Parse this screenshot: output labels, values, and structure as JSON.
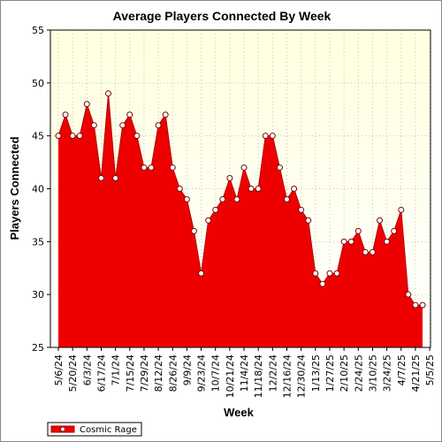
{
  "chart_data": {
    "type": "area",
    "title": "Average Players Connected By Week",
    "xlabel": "Week",
    "ylabel": "Players Connected",
    "ylim": [
      25,
      55
    ],
    "yticks": [
      25,
      30,
      35,
      40,
      45,
      50,
      55
    ],
    "grid": true,
    "legend_position": "bottom-left",
    "colors": {
      "plot_background_top": "#ffffe0",
      "plot_background_bottom": "#ffffff",
      "area_fill": "#ee0000",
      "line": "#b00000",
      "grid": "#c8c8a0",
      "marker_fill": "#ffffff",
      "marker_stroke": "#800000"
    },
    "x_tick_labels": [
      "5/6/24",
      "5/20/24",
      "6/3/24",
      "6/17/24",
      "7/1/24",
      "7/15/24",
      "7/29/24",
      "8/12/24",
      "8/26/24",
      "9/9/24",
      "9/23/24",
      "10/7/24",
      "10/21/24",
      "11/4/24",
      "11/18/24",
      "12/2/24",
      "12/16/24",
      "12/30/24",
      "1/13/25",
      "1/27/25",
      "2/10/25",
      "2/24/25",
      "3/10/25",
      "3/24/25",
      "4/7/25",
      "4/21/25",
      "5/5/25"
    ],
    "series": [
      {
        "name": "Cosmic Rage",
        "values": [
          45,
          47,
          45,
          45,
          48,
          46,
          41,
          49,
          41,
          46,
          47,
          45,
          42,
          42,
          46,
          47,
          42,
          40,
          39,
          36,
          32,
          37,
          38,
          39,
          41,
          39,
          42,
          40,
          40,
          45,
          45,
          42,
          39,
          40,
          38,
          37,
          32,
          31,
          32,
          32,
          35,
          35,
          36,
          34,
          34,
          37,
          35,
          36,
          38,
          30,
          29,
          29
        ]
      }
    ]
  }
}
